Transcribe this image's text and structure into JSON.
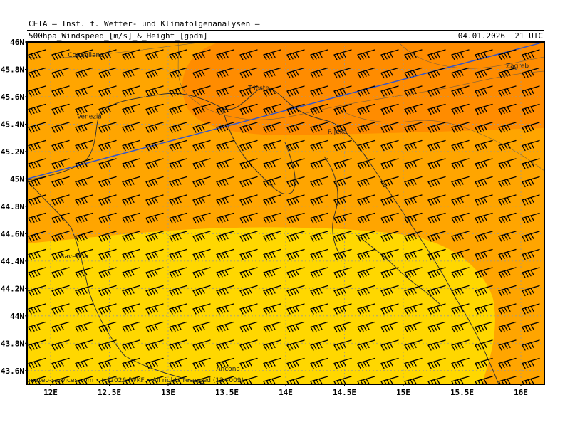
{
  "header": {
    "title": "CETA — Inst. f. Wetter- und Klimafolgenanalysen —",
    "parameter": "500hpa_Windspeed_[m/s]_&_Height_[gpdm]",
    "valid_time": "04.01.2026  21 UTC"
  },
  "map": {
    "lon_range": [
      11.8,
      16.2
    ],
    "lat_range": [
      43.5,
      46.0
    ],
    "lat_labels": [
      "46N",
      "45.8N",
      "45.6N",
      "45.4N",
      "45.2N",
      "45N",
      "44.8N",
      "44.6N",
      "44.4N",
      "44.2N",
      "44N",
      "43.8N",
      "43.6N"
    ],
    "lat_values": [
      46.0,
      45.8,
      45.6,
      45.4,
      45.2,
      45.0,
      44.8,
      44.6,
      44.4,
      44.2,
      44.0,
      43.8,
      43.6
    ],
    "lon_labels": [
      "12E",
      "12.5E",
      "13E",
      "13.5E",
      "14E",
      "14.5E",
      "15E",
      "15.5E",
      "16E"
    ],
    "lon_values": [
      12.0,
      12.5,
      13.0,
      13.5,
      14.0,
      14.5,
      15.0,
      15.5,
      16.0
    ],
    "colors": {
      "wind_low": "#FFD700",
      "wind_mid": "#FFA500",
      "wind_high": "#FF8C00",
      "height_contour": "#3355CC",
      "grid": "#999999",
      "barb": "#000000"
    },
    "cities": [
      {
        "name": "Conegliano",
        "lon": 12.3,
        "lat": 45.89
      },
      {
        "name": "Venezia",
        "lon": 12.33,
        "lat": 45.44
      },
      {
        "name": "Trieste",
        "lon": 13.77,
        "lat": 45.65
      },
      {
        "name": "Rijeka",
        "lon": 14.44,
        "lat": 45.33
      },
      {
        "name": "Zagreb",
        "lon": 15.97,
        "lat": 45.81
      },
      {
        "name": "Ravenna",
        "lon": 12.2,
        "lat": 44.42
      },
      {
        "name": "Ancona",
        "lon": 13.51,
        "lat": 43.6
      }
    ],
    "height_contour": [
      [
        11.8,
        45.0
      ],
      [
        16.2,
        46.0
      ]
    ],
    "wind_barb_direction": "westerly"
  },
  "footer": {
    "copyright": "meteo-services.com • (c)2026 IWKF • All rights reserved (12+009)"
  }
}
